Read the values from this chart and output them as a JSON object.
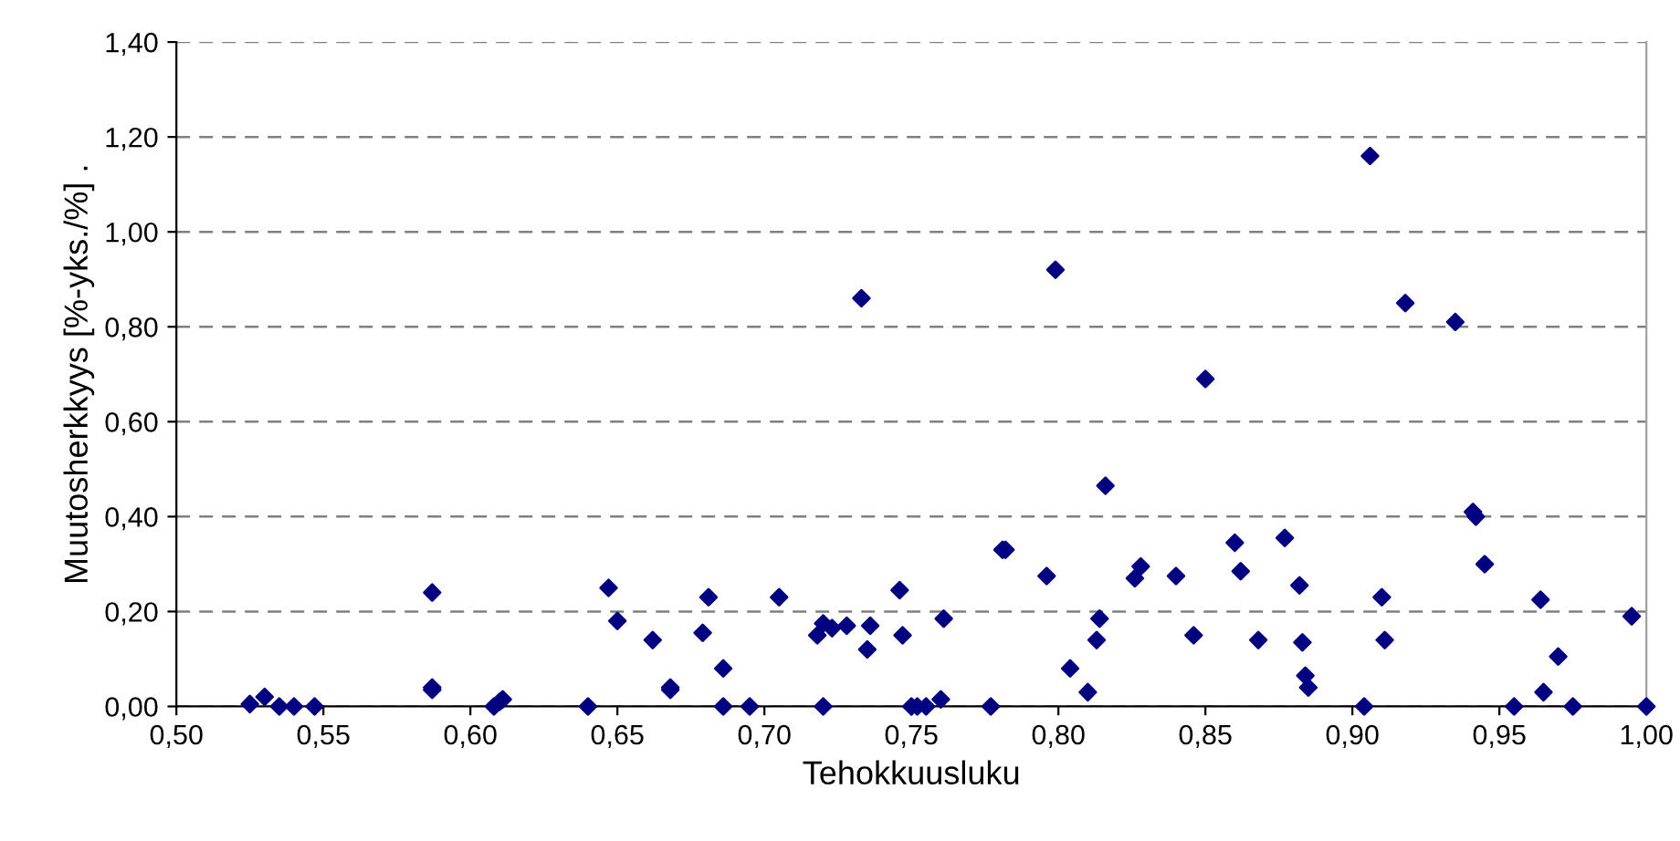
{
  "chart_data": {
    "type": "scatter",
    "xlabel": "Tehokkuusluku",
    "ylabel": "Muutosherkkyys [%-yks./%] .",
    "marker": "diamond",
    "grid": "y",
    "legend": false,
    "xlim": [
      0.5,
      1.0
    ],
    "ylim": [
      0,
      1.4
    ],
    "xticks": [
      {
        "value": 0.5,
        "label": "0,50"
      },
      {
        "value": 0.55,
        "label": "0,55"
      },
      {
        "value": 0.6,
        "label": "0,60"
      },
      {
        "value": 0.65,
        "label": "0,65"
      },
      {
        "value": 0.7,
        "label": "0,70"
      },
      {
        "value": 0.75,
        "label": "0,75"
      },
      {
        "value": 0.8,
        "label": "0,80"
      },
      {
        "value": 0.85,
        "label": "0,85"
      },
      {
        "value": 0.9,
        "label": "0,90"
      },
      {
        "value": 0.95,
        "label": "0,95"
      },
      {
        "value": 1.0,
        "label": "1,00"
      }
    ],
    "yticks": [
      {
        "value": 0,
        "label": "0,00"
      },
      {
        "value": 0.2,
        "label": "0,20"
      },
      {
        "value": 0.4,
        "label": "0,40"
      },
      {
        "value": 0.6,
        "label": "0,60"
      },
      {
        "value": 0.8,
        "label": "0,80"
      },
      {
        "value": 1.0,
        "label": "1,00"
      },
      {
        "value": 1.2,
        "label": "1,20"
      },
      {
        "value": 1.4,
        "label": "1,40"
      }
    ],
    "series": [
      {
        "color": "#000080",
        "x": [
          0.525,
          0.53,
          0.535,
          0.54,
          0.547,
          0.587,
          0.587,
          0.587,
          0.608,
          0.61,
          0.611,
          0.64,
          0.647,
          0.65,
          0.662,
          0.668,
          0.668,
          0.679,
          0.681,
          0.686,
          0.686,
          0.695,
          0.705,
          0.718,
          0.72,
          0.72,
          0.723,
          0.728,
          0.733,
          0.735,
          0.736,
          0.746,
          0.747,
          0.75,
          0.752,
          0.755,
          0.76,
          0.761,
          0.777,
          0.781,
          0.782,
          0.796,
          0.799,
          0.804,
          0.81,
          0.813,
          0.814,
          0.816,
          0.826,
          0.828,
          0.84,
          0.846,
          0.85,
          0.86,
          0.862,
          0.868,
          0.877,
          0.882,
          0.883,
          0.884,
          0.885,
          0.904,
          0.906,
          0.91,
          0.911,
          0.918,
          0.935,
          0.941,
          0.942,
          0.945,
          0.955,
          0.964,
          0.965,
          0.97,
          0.975,
          0.995,
          1.0
        ],
        "values": [
          0.005,
          0.02,
          0,
          0,
          0,
          0.24,
          0.04,
          0.035,
          0,
          0.01,
          0.015,
          0,
          0.25,
          0.18,
          0.14,
          0.04,
          0.035,
          0.155,
          0.23,
          0.08,
          0,
          0,
          0.23,
          0.15,
          0.175,
          0,
          0.165,
          0.17,
          0.86,
          0.12,
          0.17,
          0.245,
          0.15,
          0,
          0,
          0,
          0.015,
          0.185,
          0,
          0.33,
          0.33,
          0.275,
          0.92,
          0.08,
          0.03,
          0.14,
          0.185,
          0.465,
          0.27,
          0.295,
          0.275,
          0.15,
          0.69,
          0.345,
          0.285,
          0.14,
          0.355,
          0.255,
          0.135,
          0.065,
          0.04,
          0,
          1.16,
          0.23,
          0.14,
          0.85,
          0.81,
          0.41,
          0.4,
          0.3,
          0,
          0.225,
          0.03,
          0.105,
          0,
          0.19,
          0
        ]
      }
    ]
  }
}
